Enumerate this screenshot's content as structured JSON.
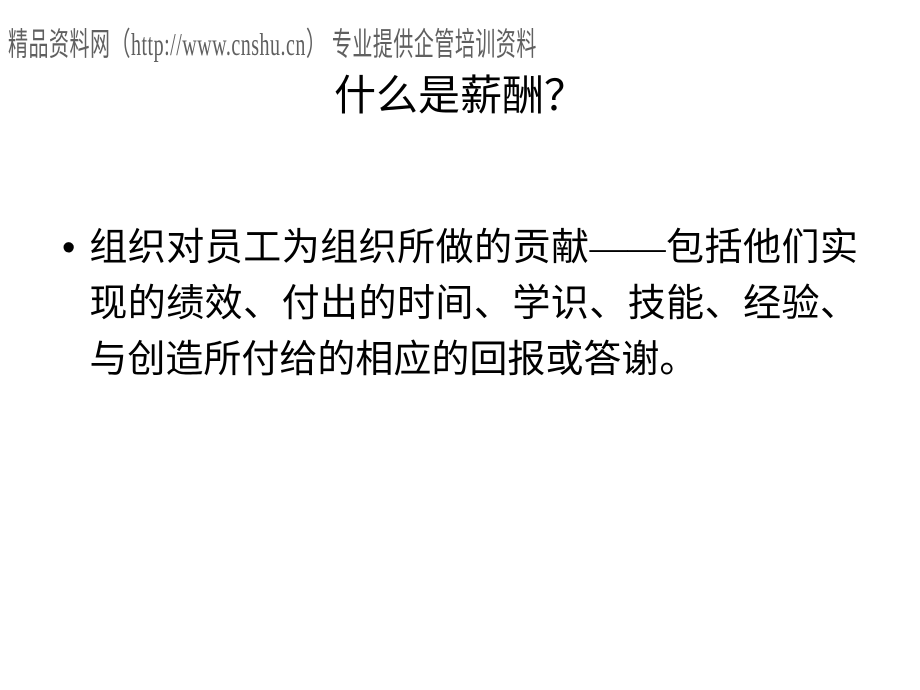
{
  "watermark": {
    "text": "精品资料网（http://www.cnshu.cn） 专业提供企管培训资料",
    "color": "#606060",
    "fontsize": 20
  },
  "slide": {
    "title": "什么是薪酬？",
    "title_fontsize": 42,
    "title_color": "#000000",
    "background_color": "#ffffff"
  },
  "content": {
    "bullets": [
      {
        "marker": "•",
        "text": "组织对员工为组织所做的贡献——包括他们实现的绩效、付出的时间、学识、技能、经验、与创造所付给的相应的回报或答谢。"
      }
    ],
    "fontsize": 38,
    "text_color": "#000000",
    "line_height": 56
  }
}
